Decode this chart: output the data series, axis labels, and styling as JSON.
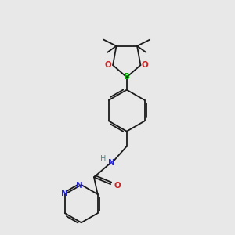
{
  "background_color": "#e8e8e8",
  "atom_colors": {
    "C": "#1a1a1a",
    "N": "#2222cc",
    "O": "#cc2222",
    "B": "#00aa00",
    "H": "#558888"
  },
  "figsize": [
    3.0,
    3.0
  ],
  "dpi": 100
}
